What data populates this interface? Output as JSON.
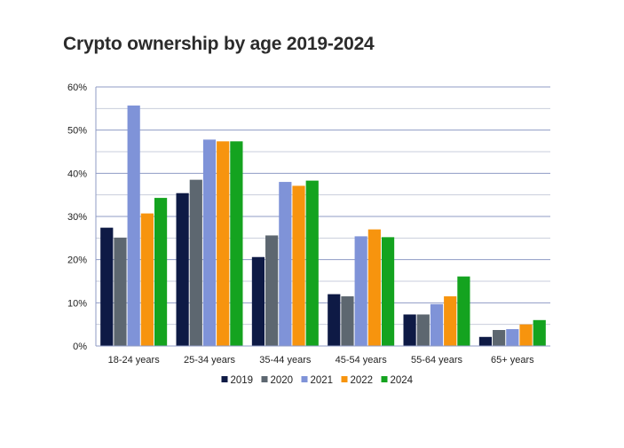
{
  "chart_data": {
    "type": "bar",
    "title": "Crypto ownership by age 2019-2024",
    "xlabel": "",
    "ylabel": "",
    "ylim": [
      0,
      60
    ],
    "yticks": [
      "0%",
      "10%",
      "20%",
      "30%",
      "40%",
      "50%",
      "60%"
    ],
    "ytick_values": [
      0,
      10,
      20,
      30,
      40,
      50,
      60
    ],
    "minor_grid_step": 5,
    "grid": true,
    "legend_position": "bottom",
    "categories": [
      "18-24 years",
      "25-34 years",
      "35-44 years",
      "45-54 years",
      "55-64 years",
      "65+ years"
    ],
    "series": [
      {
        "name": "2019",
        "color": "#0e1a45",
        "values": [
          27.4,
          35.4,
          20.6,
          12.0,
          7.3,
          2.1
        ]
      },
      {
        "name": "2020",
        "color": "#5d6770",
        "values": [
          25.1,
          38.5,
          25.6,
          11.5,
          7.3,
          3.7
        ]
      },
      {
        "name": "2021",
        "color": "#7f93d8",
        "values": [
          55.7,
          47.8,
          38.0,
          25.4,
          9.7,
          3.9
        ]
      },
      {
        "name": "2022",
        "color": "#f7940e",
        "values": [
          30.7,
          47.4,
          37.1,
          27.0,
          11.5,
          5.0
        ]
      },
      {
        "name": "2024",
        "color": "#14a31f",
        "values": [
          34.3,
          47.4,
          38.3,
          25.2,
          16.1,
          6.0
        ]
      }
    ]
  }
}
